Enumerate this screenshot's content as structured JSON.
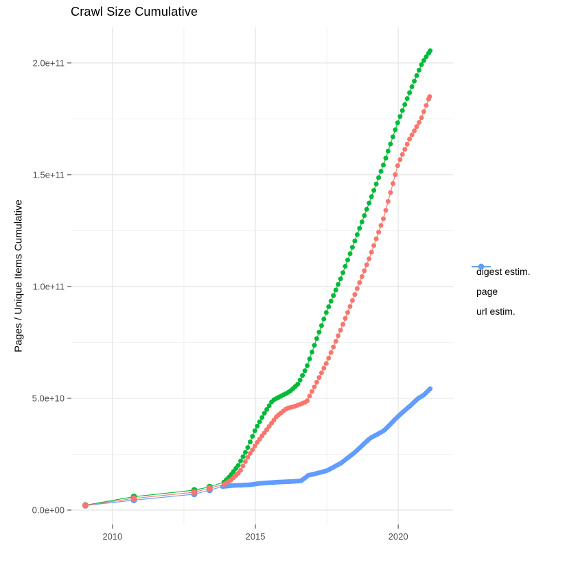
{
  "chart_data": {
    "type": "line",
    "title": "Crawl Size Cumulative",
    "xlabel": "",
    "ylabel": "Pages / Unique Items Cumulative",
    "xlim": [
      2008.56,
      2021.92
    ],
    "ylim": [
      -6450000000,
      215900000000
    ],
    "grid": true,
    "legend_position": "right",
    "x_ticks": {
      "major": [
        {
          "value": 2010,
          "label": "2010"
        },
        {
          "value": 2015,
          "label": "2015"
        },
        {
          "value": 2020,
          "label": "2020"
        }
      ],
      "minor": [
        2012.5,
        2017.5
      ]
    },
    "y_ticks": {
      "major": [
        {
          "value": 0,
          "label": "0.0e+00"
        },
        {
          "value": 50000000000,
          "label": "5.0e+10"
        },
        {
          "value": 100000000000,
          "label": "1.0e+11"
        },
        {
          "value": 150000000000,
          "label": "1.5e+11"
        },
        {
          "value": 200000000000,
          "label": "2.0e+11"
        }
      ],
      "minor": [
        25000000000,
        75000000000,
        125000000000,
        175000000000
      ]
    },
    "series": [
      {
        "name": "digest estim.",
        "color": "#F8766D",
        "early_points": [
          [
            2009.05,
            2100000000.0
          ],
          [
            2010.75,
            5200000000.0
          ],
          [
            2012.86,
            8000000000.0
          ],
          [
            2013.4,
            9800000000.0
          ]
        ],
        "dense_from": 2013.9,
        "dot_interval": 0.0833,
        "anchors": [
          [
            2013.9,
            11500000000.0
          ],
          [
            2014.15,
            13500000000.0
          ],
          [
            2014.45,
            17000000000.0
          ],
          [
            2014.75,
            24000000000.0
          ],
          [
            2015.05,
            30000000000.0
          ],
          [
            2015.4,
            36000000000.0
          ],
          [
            2015.75,
            42000000000.0
          ],
          [
            2016.1,
            45500000000.0
          ],
          [
            2016.4,
            46500000000.0
          ],
          [
            2016.8,
            48500000000.0
          ],
          [
            2017.1,
            56000000000.0
          ],
          [
            2017.5,
            66000000000.0
          ],
          [
            2018.0,
            81000000000.0
          ],
          [
            2018.5,
            97000000000.0
          ],
          [
            2019.0,
            113000000000.0
          ],
          [
            2019.5,
            131000000000.0
          ],
          [
            2020.0,
            155000000000.0
          ],
          [
            2020.4,
            166000000000.0
          ],
          [
            2020.8,
            175000000000.0
          ],
          [
            2021.1,
            185000000000.0
          ]
        ]
      },
      {
        "name": "page",
        "color": "#00BA38",
        "early_points": [
          [
            2009.05,
            2200000000.0
          ],
          [
            2010.75,
            6000000000.0
          ],
          [
            2012.86,
            8900000000.0
          ],
          [
            2013.4,
            10400000000.0
          ]
        ],
        "dense_from": 2013.9,
        "dot_interval": 0.0833,
        "anchors": [
          [
            2013.9,
            12500000000.0
          ],
          [
            2014.1,
            15000000000.0
          ],
          [
            2014.4,
            20000000000.0
          ],
          [
            2014.7,
            27000000000.0
          ],
          [
            2015.0,
            36000000000.0
          ],
          [
            2015.3,
            43000000000.0
          ],
          [
            2015.6,
            49000000000.0
          ],
          [
            2015.9,
            51000000000.0
          ],
          [
            2016.2,
            53000000000.0
          ],
          [
            2016.5,
            56500000000.0
          ],
          [
            2016.8,
            64000000000.0
          ],
          [
            2017.1,
            75000000000.0
          ],
          [
            2017.5,
            89000000000.0
          ],
          [
            2018.0,
            104000000000.0
          ],
          [
            2018.5,
            121000000000.0
          ],
          [
            2019.0,
            138000000000.0
          ],
          [
            2019.5,
            155000000000.0
          ],
          [
            2020.0,
            174000000000.0
          ],
          [
            2020.5,
            190000000000.0
          ],
          [
            2020.84,
            200000000000.0
          ],
          [
            2021.12,
            205500000000.0
          ]
        ]
      },
      {
        "name": "url estim.",
        "color": "#619CFF",
        "early_points": [
          [
            2009.05,
            2000000000.0
          ],
          [
            2010.75,
            4400000000.0
          ],
          [
            2012.86,
            7100000000.0
          ],
          [
            2013.4,
            8900000000.0
          ]
        ],
        "dense_from": 2013.85,
        "dot_interval": 0.0625,
        "anchors": [
          [
            2013.85,
            10500000000.0
          ],
          [
            2014.2,
            11000000000.0
          ],
          [
            2014.8,
            11300000000.0
          ],
          [
            2015.2,
            12000000000.0
          ],
          [
            2015.8,
            12500000000.0
          ],
          [
            2016.3,
            12800000000.0
          ],
          [
            2016.6,
            13100000000.0
          ],
          [
            2016.72,
            14200000000.0
          ],
          [
            2016.85,
            15500000000.0
          ],
          [
            2017.2,
            16600000000.0
          ],
          [
            2017.5,
            17600000000.0
          ],
          [
            2018.0,
            21000000000.0
          ],
          [
            2018.5,
            26000000000.0
          ],
          [
            2019.0,
            32000000000.0
          ],
          [
            2019.5,
            35500000000.0
          ],
          [
            2020.0,
            42000000000.0
          ],
          [
            2020.45,
            47000000000.0
          ],
          [
            2020.7,
            50000000000.0
          ],
          [
            2020.9,
            51500000000.0
          ],
          [
            2021.12,
            54300000000.0
          ]
        ]
      }
    ],
    "draw_order": [
      1,
      2,
      0
    ],
    "colors": {
      "grid_major": "#E4E4E4",
      "grid_minor": "#F0F0F0",
      "tick": "#333333",
      "tick_label": "#4D4D4D",
      "text": "#000000",
      "background": "#FFFFFF"
    }
  }
}
